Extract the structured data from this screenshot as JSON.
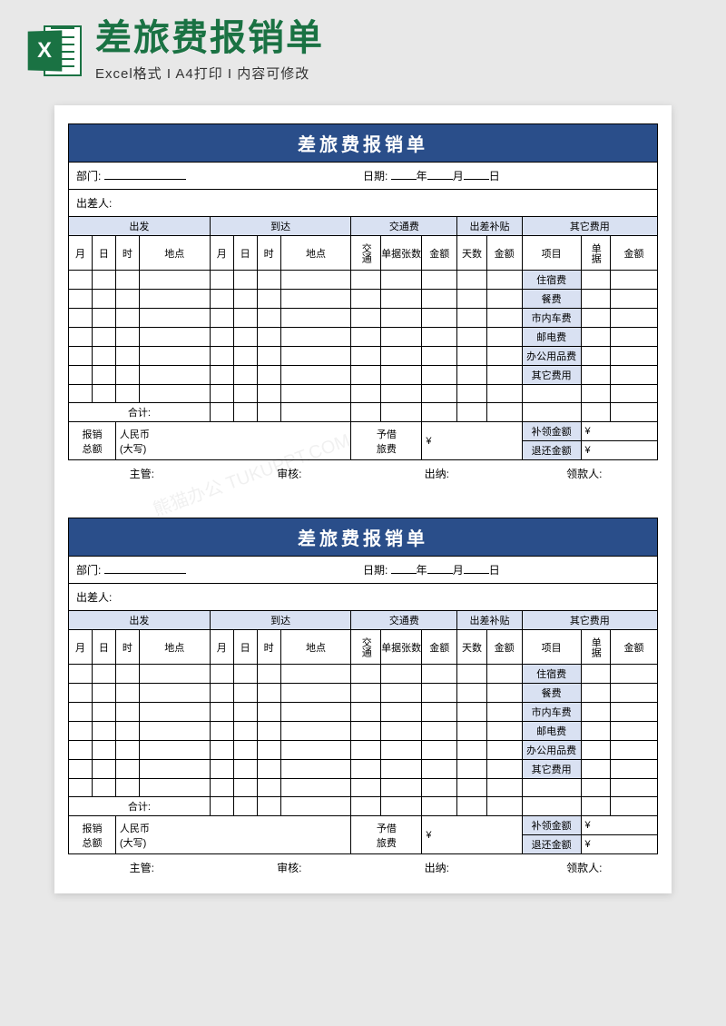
{
  "header": {
    "icon_letter": "X",
    "main_title": "差旅费报销单",
    "sub_title": "Excel格式 I A4打印 I 内容可修改"
  },
  "colors": {
    "brand_green": "#1a7243",
    "title_bar": "#2a4e8a",
    "header_fill": "#d9e1f2",
    "page_bg": "#e8e8e8",
    "paper": "#ffffff",
    "border": "#000000"
  },
  "form": {
    "title": "差旅费报销单",
    "dept_label": "部门:",
    "date_label": "日期:",
    "date_year": "年",
    "date_month": "月",
    "date_day": "日",
    "traveler_label": "出差人:",
    "group_departure": "出发",
    "group_arrival": "到达",
    "group_transport": "交通费",
    "group_allowance": "出差补贴",
    "group_other": "其它费用",
    "col_month": "月",
    "col_day": "日",
    "col_hour": "时",
    "col_place": "地点",
    "col_transport": "交通",
    "col_receipts": "单据张数",
    "col_amount": "金额",
    "col_days": "天数",
    "col_item": "项目",
    "col_receipt": "单据",
    "other_items": [
      "住宿费",
      "餐费",
      "市内车费",
      "邮电费",
      "办公用品费",
      "其它费用"
    ],
    "subtotal": "合计:",
    "total_label1": "报销",
    "total_label2": "总额",
    "rmb1": "人民币",
    "rmb2": "(大写)",
    "advance1": "予借",
    "advance2": "旅费",
    "yen": "¥",
    "extra_amt": "补领金额",
    "refund_amt": "退还金额",
    "sign_supervisor": "主管:",
    "sign_review": "审核:",
    "sign_cashier": "出纳:",
    "sign_payee": "领款人:"
  },
  "layout": {
    "empty_body_rows": 7,
    "col_widths_pct": [
      4,
      4,
      4,
      12,
      4,
      4,
      4,
      12,
      5,
      7,
      6,
      5,
      6,
      10,
      5,
      8
    ]
  }
}
